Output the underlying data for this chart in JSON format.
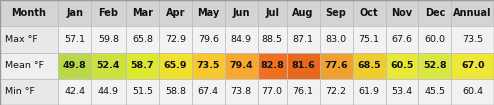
{
  "headers": [
    "Month",
    "Jan",
    "Feb",
    "Mar",
    "Apr",
    "May",
    "Jun",
    "Jul",
    "Aug",
    "Sep",
    "Oct",
    "Nov",
    "Dec",
    "Annual"
  ],
  "rows": [
    {
      "label": "Max °F",
      "values": [
        "57.1",
        "59.8",
        "65.8",
        "72.9",
        "79.6",
        "84.9",
        "88.5",
        "87.1",
        "83.0",
        "75.1",
        "67.6",
        "60.0",
        "73.5"
      ],
      "cell_colors": [
        "#f2f2f2",
        "#f2f2f2",
        "#f2f2f2",
        "#f2f2f2",
        "#f2f2f2",
        "#f2f2f2",
        "#f2f2f2",
        "#f2f2f2",
        "#f2f2f2",
        "#f2f2f2",
        "#f2f2f2",
        "#f2f2f2",
        "#f2f2f2"
      ],
      "bold": false
    },
    {
      "label": "Mean °F",
      "values": [
        "49.8",
        "52.4",
        "58.7",
        "65.9",
        "73.5",
        "79.4",
        "82.8",
        "81.6",
        "77.6",
        "68.5",
        "60.5",
        "52.8",
        "67.0"
      ],
      "cell_colors": [
        "#b8d84a",
        "#cce040",
        "#dde830",
        "#f0e030",
        "#f8c830",
        "#f8a830",
        "#f07020",
        "#e86820",
        "#f0a030",
        "#f0cc30",
        "#e8e838",
        "#d8e840",
        "#f0e838"
      ],
      "bold": true
    },
    {
      "label": "Min °F",
      "values": [
        "42.4",
        "44.9",
        "51.5",
        "58.8",
        "67.4",
        "73.8",
        "77.0",
        "76.1",
        "72.2",
        "61.9",
        "53.4",
        "45.5",
        "60.4"
      ],
      "cell_colors": [
        "#f2f2f2",
        "#f2f2f2",
        "#f2f2f2",
        "#f2f2f2",
        "#f2f2f2",
        "#f2f2f2",
        "#f2f2f2",
        "#f2f2f2",
        "#f2f2f2",
        "#f2f2f2",
        "#f2f2f2",
        "#f2f2f2",
        "#f2f2f2"
      ],
      "bold": false
    }
  ],
  "header_bg": "#d4d4d4",
  "label_col_bg_even": "#e8e8e8",
  "label_col_bg_odd": "#efefef",
  "row_bg_even": "#f2f2f2",
  "row_bg_odd": "#f8f8f8",
  "border_color": "#bbbbbb",
  "text_color": "#111111",
  "figsize": [
    4.94,
    1.05
  ],
  "dpi": 100,
  "col_widths": [
    1.5,
    0.85,
    0.9,
    0.85,
    0.85,
    0.85,
    0.85,
    0.75,
    0.85,
    0.85,
    0.85,
    0.85,
    0.85,
    1.1
  ],
  "fontsize_header": 7.0,
  "fontsize_data": 6.8
}
